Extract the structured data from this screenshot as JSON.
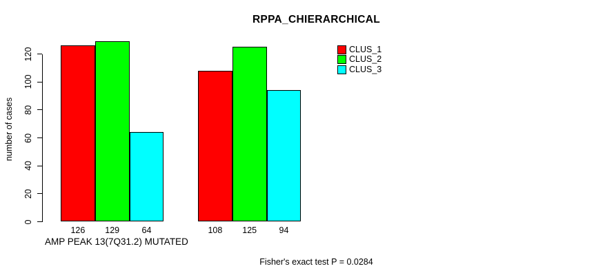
{
  "chart_data": {
    "type": "bar",
    "title": "RPPA_CHIERARCHICAL",
    "ylabel": "number of cases",
    "xlabel": "AMP PEAK 13(7Q31.2) MUTATED",
    "annotation": "Fisher's exact test P = 0.0284",
    "ylim": [
      0,
      120
    ],
    "yticks": [
      0,
      20,
      40,
      60,
      80,
      100,
      120
    ],
    "categories": [
      "",
      ""
    ],
    "series": [
      {
        "name": "CLUS_1",
        "color": "#ff0000",
        "values": [
          126,
          108
        ]
      },
      {
        "name": "CLUS_2",
        "color": "#00ff00",
        "values": [
          129,
          125
        ]
      },
      {
        "name": "CLUS_3",
        "color": "#00ffff",
        "values": [
          64,
          94
        ]
      }
    ],
    "bar_value_labels": [
      [
        "126",
        "129",
        "64"
      ],
      [
        "108",
        "125",
        "94"
      ]
    ],
    "legend": {
      "position": "top-right",
      "entries": [
        "CLUS_1",
        "CLUS_2",
        "CLUS_3"
      ]
    },
    "grid": false,
    "background": "#ffffff",
    "axis_color": "#000000",
    "text_color": "#000000"
  }
}
